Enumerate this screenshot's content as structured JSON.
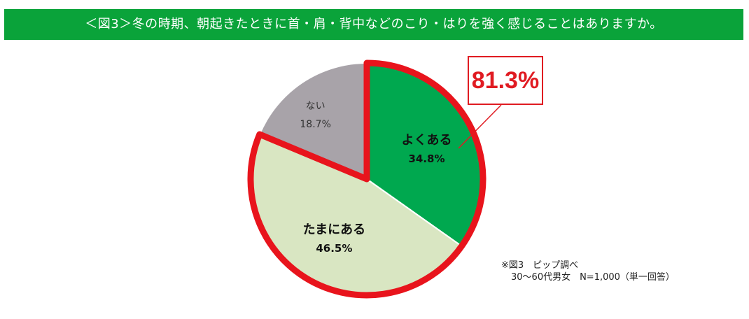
{
  "header": {
    "title": "＜図3＞冬の時期、朝起きたときに首・肩・背中などのこり・はりを強く感じることはありますか。"
  },
  "chart_data": {
    "type": "pie",
    "start_angle_deg": 0,
    "direction": "clockwise",
    "slices": [
      {
        "label": "よくある",
        "pct_label": "34.8%",
        "value": 34.8,
        "color": "#00a84f",
        "text_color": "#111111",
        "bold": true,
        "highlighted": true
      },
      {
        "label": "たまにある",
        "pct_label": "46.5%",
        "value": 46.5,
        "color": "#d9e6c2",
        "text_color": "#111111",
        "bold": true,
        "highlighted": true
      },
      {
        "label": "ない",
        "pct_label": "18.7%",
        "value": 18.7,
        "color": "#a8a3a9",
        "text_color": "#333333",
        "bold": false,
        "highlighted": false
      }
    ],
    "highlight_color": "#e8141c",
    "callout": "81.3%"
  },
  "note": {
    "line1": "※図3　ピップ調べ",
    "line2": "30〜60代男女　N=1,000（単一回答）"
  }
}
